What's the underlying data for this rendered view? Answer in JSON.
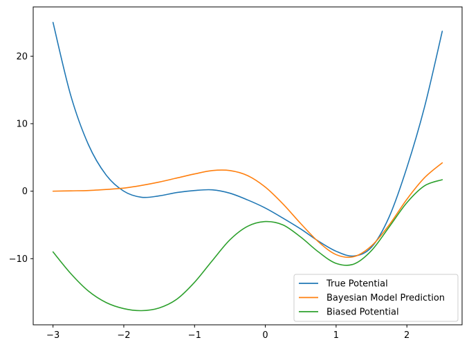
{
  "chart_data": {
    "type": "line",
    "title": "",
    "xlabel": "",
    "ylabel": "",
    "xlim": [
      -3.28,
      2.78
    ],
    "ylim": [
      -19.8,
      27.3
    ],
    "grid": false,
    "legend_position": "bottom-right",
    "xticks": [
      -3,
      -2,
      -1,
      0,
      1,
      2
    ],
    "xtick_labels": [
      "−3",
      "−2",
      "−1",
      "0",
      "1",
      "2"
    ],
    "yticks": [
      -10,
      0,
      10,
      20
    ],
    "ytick_labels": [
      "−10",
      "0",
      "10",
      "20"
    ],
    "x": [
      -3.0,
      -2.75,
      -2.5,
      -2.25,
      -2.0,
      -1.75,
      -1.5,
      -1.25,
      -1.0,
      -0.75,
      -0.5,
      -0.25,
      0.0,
      0.25,
      0.5,
      0.75,
      1.0,
      1.25,
      1.5,
      1.75,
      2.0,
      2.25,
      2.5
    ],
    "series": [
      {
        "name": "True Potential",
        "color": "#1f77b4",
        "values": [
          25.0,
          14.2,
          6.9,
          2.4,
          0.0,
          -0.9,
          -0.7,
          -0.2,
          0.1,
          0.2,
          -0.3,
          -1.3,
          -2.5,
          -4.0,
          -5.6,
          -7.4,
          -8.9,
          -9.6,
          -8.3,
          -3.8,
          3.5,
          12.5,
          23.7
        ]
      },
      {
        "name": "Bayesian Model Prediction",
        "color": "#ff7f0e",
        "values": [
          0.0,
          0.05,
          0.1,
          0.25,
          0.45,
          0.85,
          1.35,
          1.95,
          2.55,
          3.05,
          3.05,
          2.3,
          0.6,
          -1.9,
          -4.8,
          -7.5,
          -9.4,
          -9.7,
          -8.1,
          -5.0,
          -1.2,
          2.0,
          4.2
        ]
      },
      {
        "name": "Biased Potential",
        "color": "#2ca02c",
        "values": [
          -9.0,
          -12.2,
          -14.8,
          -16.5,
          -17.4,
          -17.7,
          -17.3,
          -16.0,
          -13.5,
          -10.3,
          -7.2,
          -5.2,
          -4.5,
          -5.0,
          -6.8,
          -9.0,
          -10.7,
          -10.8,
          -8.8,
          -5.3,
          -1.7,
          0.8,
          1.7
        ]
      }
    ]
  }
}
